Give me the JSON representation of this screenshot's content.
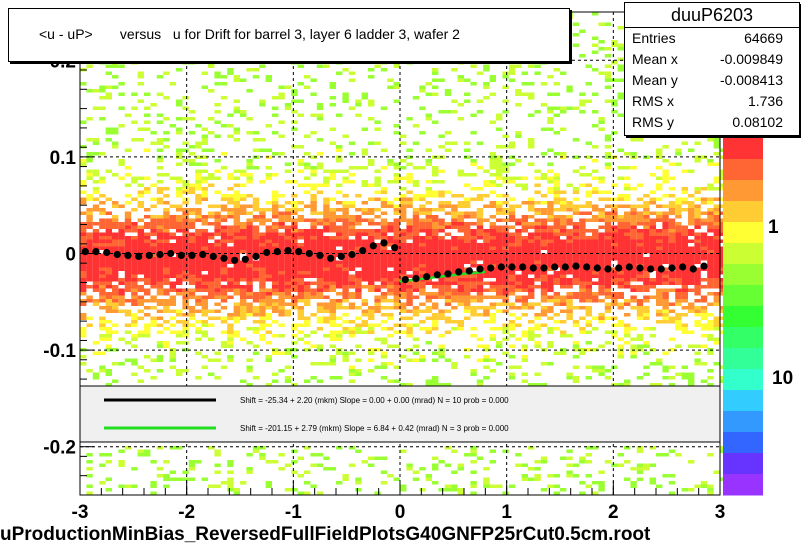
{
  "title": "<u - uP>       versus   u for Drift for barrel 3, layer 6 ladder 3, wafer 2",
  "stats": {
    "name": "duuP6203",
    "rows": [
      {
        "label": "Entries",
        "value": "64669"
      },
      {
        "label": "Mean x",
        "value": "-0.009849"
      },
      {
        "label": "Mean y",
        "value": "-0.008413"
      },
      {
        "label": "RMS x",
        "value": "1.736"
      },
      {
        "label": "RMS y",
        "value": "0.08102"
      }
    ]
  },
  "bottom_label": "uProductionMinBias_ReversedFullFieldPlotsG40GNFP25rCut0.5cm.root",
  "legend": [
    {
      "color": "#000000",
      "text": "Shift =   -25.34 + 2.20 (mkm) Slope =     0.00 + 0.00 (mrad)  N = 10 prob = 0.000"
    },
    {
      "color": "#22dd22",
      "text": "Shift =  -201.15 + 2.79 (mkm) Slope =     6.84 + 0.42 (mrad)  N = 3 prob = 0.000"
    }
  ],
  "colorbar": {
    "ticks": [
      "1",
      "10"
    ],
    "top_tick_fragment": "0"
  },
  "chart_data": {
    "type": "scatter",
    "title": "<u - uP>       versus   u for Drift for barrel 3, layer 6 ladder 3, wafer 2",
    "xlabel": "",
    "ylabel": "",
    "xlim": [
      -3,
      3
    ],
    "ylim": [
      -0.25,
      0.25
    ],
    "x_ticks": [
      "-3",
      "-2",
      "-1",
      "0",
      "1",
      "2",
      "3"
    ],
    "y_ticks": [
      "0.2",
      "0.1",
      "0",
      "-0.1",
      "-0.2"
    ],
    "background": "2D occupancy histogram of u - uP versus u, densest near 0",
    "series": [
      {
        "name": "profile",
        "color": "#000000",
        "x": [
          -2.95,
          -2.85,
          -2.75,
          -2.65,
          -2.55,
          -2.45,
          -2.35,
          -2.25,
          -2.15,
          -2.05,
          -1.95,
          -1.85,
          -1.75,
          -1.65,
          -1.55,
          -1.45,
          -1.35,
          -1.25,
          -1.15,
          -1.05,
          -0.95,
          -0.85,
          -0.75,
          -0.65,
          -0.55,
          -0.45,
          -0.35,
          -0.25,
          -0.15,
          -0.05,
          0.05,
          0.15,
          0.25,
          0.35,
          0.45,
          0.55,
          0.65,
          0.75,
          0.85,
          0.95,
          1.05,
          1.15,
          1.25,
          1.35,
          1.45,
          1.55,
          1.65,
          1.75,
          1.85,
          1.95,
          2.05,
          2.15,
          2.25,
          2.35,
          2.45,
          2.55,
          2.65,
          2.75,
          2.85
        ],
        "y": [
          0.002,
          0.002,
          0.001,
          -0.001,
          -0.002,
          -0.003,
          -0.002,
          -0.001,
          0.0,
          -0.002,
          -0.002,
          -0.001,
          -0.003,
          -0.005,
          -0.007,
          -0.006,
          -0.003,
          0.001,
          0.002,
          0.003,
          0.002,
          0.0,
          -0.002,
          -0.005,
          -0.003,
          -0.001,
          0.003,
          0.008,
          0.011,
          0.006,
          -0.027,
          -0.026,
          -0.024,
          -0.022,
          -0.021,
          -0.019,
          -0.018,
          -0.016,
          -0.015,
          -0.014,
          -0.014,
          -0.014,
          -0.015,
          -0.015,
          -0.014,
          -0.014,
          -0.013,
          -0.014,
          -0.015,
          -0.016,
          -0.015,
          -0.014,
          -0.015,
          -0.016,
          -0.016,
          -0.015,
          -0.014,
          -0.016,
          -0.013
        ]
      },
      {
        "name": "fit-green",
        "color": "#22dd22",
        "x": [
          0.0,
          0.3,
          0.6,
          0.8
        ],
        "y": [
          -0.029,
          -0.025,
          -0.021,
          -0.019
        ]
      }
    ],
    "legend_position": "bottom"
  }
}
